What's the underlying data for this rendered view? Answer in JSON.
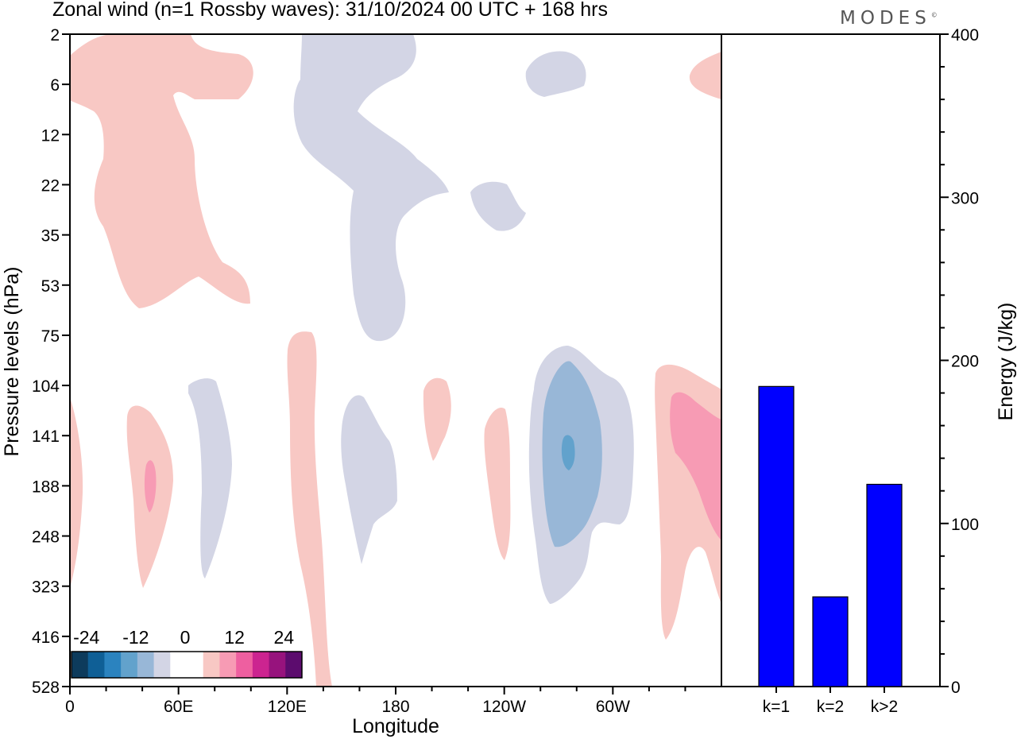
{
  "title": "Zonal wind (n=1 Rossby waves):  31/10/2024  00 UTC  + 168 hrs",
  "brand": "MODES",
  "chart_data": [
    {
      "type": "heatmap",
      "title": "Zonal wind (n=1 Rossby waves):  31/10/2024  00 UTC  + 168 hrs",
      "xlabel": "Longitude",
      "ylabel": "Pressure levels (hPa)",
      "x_ticks": [
        "0",
        "60E",
        "120E",
        "180",
        "120W",
        "60W"
      ],
      "y_ticks": [
        "2",
        "6",
        "12",
        "22",
        "35",
        "53",
        "75",
        "104",
        "141",
        "188",
        "248",
        "323",
        "416",
        "528"
      ],
      "colorbar": {
        "labels": [
          "-24",
          "-12",
          "0",
          "12",
          "24"
        ],
        "colors": [
          "#0d3b5c",
          "#0f5f96",
          "#2b83bf",
          "#62a2cc",
          "#98b7d7",
          "#d3d5e5",
          "#ffffff",
          "#ffffff",
          "#f8c8c4",
          "#f79bb4",
          "#ee5fa0",
          "#cc2490",
          "#97137d",
          "#5c0c6e"
        ]
      },
      "contour_regions": [
        {
          "level": "weak positive",
          "color": "#f8c8c4",
          "location": "0-70E, 2-53 hPa"
        },
        {
          "level": "weak negative",
          "color": "#d3d5e5",
          "location": "120E-180, 2-75 hPa"
        },
        {
          "level": "weak positive",
          "color": "#f8c8c4",
          "location": "120E-130E, 75-528 hPa"
        },
        {
          "level": "moderate negative",
          "color": "#98b7d7",
          "location": "~90W, 104-248 hPa"
        },
        {
          "level": "strongest negative",
          "color": "#62a2cc",
          "location": "~90W, ~141 hPa"
        },
        {
          "level": "moderate positive",
          "color": "#f79bb4",
          "location": "~40E, ~188 hPa"
        },
        {
          "level": "moderate positive",
          "color": "#f79bb4",
          "location": "~20W-0, 104-248 hPa"
        }
      ]
    },
    {
      "type": "bar",
      "categories": [
        "k=1",
        "k=2",
        "k>2"
      ],
      "values": [
        184,
        55,
        124
      ],
      "ylabel": "Energy (J/kg)",
      "ylim": [
        0,
        400
      ],
      "y_ticks": [
        "0",
        "100",
        "200",
        "300",
        "400"
      ],
      "bar_color": "#0000ff"
    }
  ]
}
